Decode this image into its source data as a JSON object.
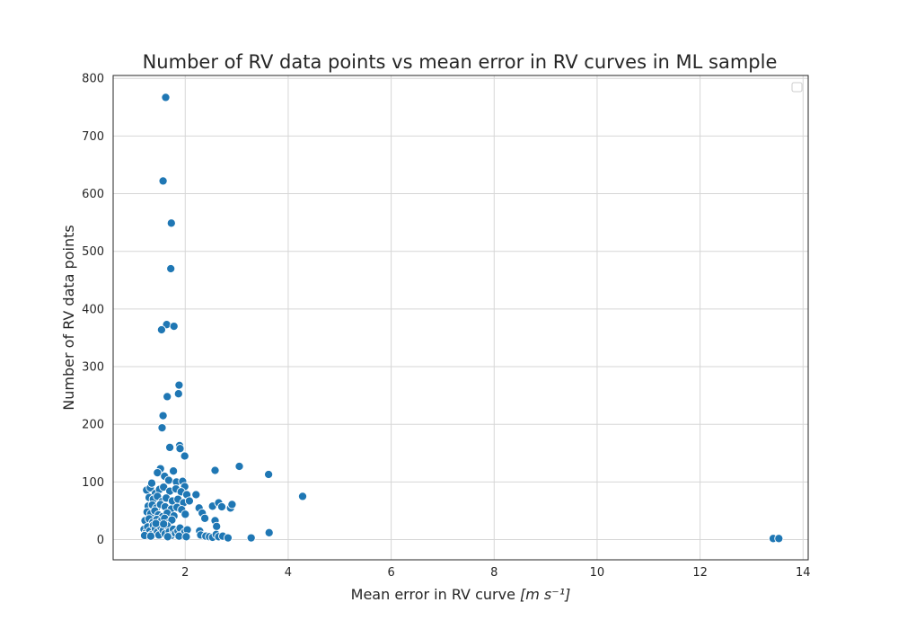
{
  "chart_data": {
    "type": "scatter",
    "title": "Number of RV data points vs mean error in RV curves in ML sample",
    "xlabel_main": "Mean error in RV curve ",
    "xlabel_unit": "[m s⁻¹]",
    "ylabel": "Number of RV data points",
    "xlim": [
      0.6,
      14.1
    ],
    "ylim": [
      -35,
      805
    ],
    "xticks": [
      2,
      4,
      6,
      8,
      10,
      12,
      14
    ],
    "yticks": [
      0,
      100,
      200,
      300,
      400,
      500,
      600,
      700,
      800
    ],
    "grid": true,
    "legend": "top-right (empty)",
    "colors": {
      "marker": "#1f77b4",
      "grid": "#d6d6d6",
      "frame": "#262626"
    },
    "points": [
      [
        1.62,
        767
      ],
      [
        1.57,
        622
      ],
      [
        1.73,
        549
      ],
      [
        1.72,
        470
      ],
      [
        1.64,
        373
      ],
      [
        1.78,
        370
      ],
      [
        1.54,
        364
      ],
      [
        1.88,
        268
      ],
      [
        1.87,
        253
      ],
      [
        1.65,
        248
      ],
      [
        1.57,
        215
      ],
      [
        1.55,
        194
      ],
      [
        1.89,
        163
      ],
      [
        1.9,
        158
      ],
      [
        1.7,
        160
      ],
      [
        1.99,
        145
      ],
      [
        3.05,
        127
      ],
      [
        2.58,
        120
      ],
      [
        3.62,
        113
      ],
      [
        4.28,
        75
      ],
      [
        1.52,
        123
      ],
      [
        1.46,
        116
      ],
      [
        1.6,
        110
      ],
      [
        1.77,
        119
      ],
      [
        1.68,
        103
      ],
      [
        1.83,
        100
      ],
      [
        1.95,
        101
      ],
      [
        1.99,
        92
      ],
      [
        1.25,
        86
      ],
      [
        1.32,
        90
      ],
      [
        1.35,
        98
      ],
      [
        1.42,
        80
      ],
      [
        1.5,
        87
      ],
      [
        1.58,
        91
      ],
      [
        1.7,
        84
      ],
      [
        1.82,
        88
      ],
      [
        1.92,
        83
      ],
      [
        2.03,
        78
      ],
      [
        2.21,
        78
      ],
      [
        1.3,
        73
      ],
      [
        1.38,
        70
      ],
      [
        1.46,
        75
      ],
      [
        1.55,
        66
      ],
      [
        1.63,
        72
      ],
      [
        1.75,
        67
      ],
      [
        1.86,
        70
      ],
      [
        1.97,
        64
      ],
      [
        2.08,
        67
      ],
      [
        1.28,
        58
      ],
      [
        1.36,
        60
      ],
      [
        1.44,
        55
      ],
      [
        1.52,
        61
      ],
      [
        1.61,
        57
      ],
      [
        1.73,
        53
      ],
      [
        1.84,
        56
      ],
      [
        1.93,
        52
      ],
      [
        2.0,
        44
      ],
      [
        2.27,
        55
      ],
      [
        2.33,
        46
      ],
      [
        2.38,
        37
      ],
      [
        2.53,
        58
      ],
      [
        2.65,
        64
      ],
      [
        2.71,
        57
      ],
      [
        2.88,
        55
      ],
      [
        2.91,
        61
      ],
      [
        2.58,
        33
      ],
      [
        2.61,
        23
      ],
      [
        1.26,
        48
      ],
      [
        1.33,
        45
      ],
      [
        1.41,
        50
      ],
      [
        1.48,
        43
      ],
      [
        1.56,
        40
      ],
      [
        1.65,
        46
      ],
      [
        1.78,
        41
      ],
      [
        1.22,
        33
      ],
      [
        1.3,
        36
      ],
      [
        1.37,
        30
      ],
      [
        1.45,
        35
      ],
      [
        1.53,
        32
      ],
      [
        1.6,
        37
      ],
      [
        1.68,
        29
      ],
      [
        1.74,
        34
      ],
      [
        1.2,
        18
      ],
      [
        1.24,
        12
      ],
      [
        1.27,
        22
      ],
      [
        1.31,
        15
      ],
      [
        1.35,
        9
      ],
      [
        1.38,
        25
      ],
      [
        1.42,
        19
      ],
      [
        1.46,
        13
      ],
      [
        1.49,
        8
      ],
      [
        1.53,
        21
      ],
      [
        1.57,
        16
      ],
      [
        1.61,
        10
      ],
      [
        1.65,
        24
      ],
      [
        1.69,
        14
      ],
      [
        1.73,
        7
      ],
      [
        1.77,
        18
      ],
      [
        1.81,
        11
      ],
      [
        1.86,
        15
      ],
      [
        1.9,
        20
      ],
      [
        1.95,
        9
      ],
      [
        1.99,
        13
      ],
      [
        2.04,
        17
      ],
      [
        1.21,
        7
      ],
      [
        1.33,
        6
      ],
      [
        1.43,
        28
      ],
      [
        1.58,
        27
      ],
      [
        1.66,
        5
      ],
      [
        1.88,
        6
      ],
      [
        2.02,
        5
      ],
      [
        2.28,
        15
      ],
      [
        2.3,
        8
      ],
      [
        2.4,
        6
      ],
      [
        2.47,
        5
      ],
      [
        2.53,
        4
      ],
      [
        2.6,
        9
      ],
      [
        2.65,
        5
      ],
      [
        2.73,
        6
      ],
      [
        2.83,
        3
      ],
      [
        3.28,
        3
      ],
      [
        3.63,
        12
      ],
      [
        13.42,
        2
      ],
      [
        13.53,
        2
      ]
    ]
  }
}
